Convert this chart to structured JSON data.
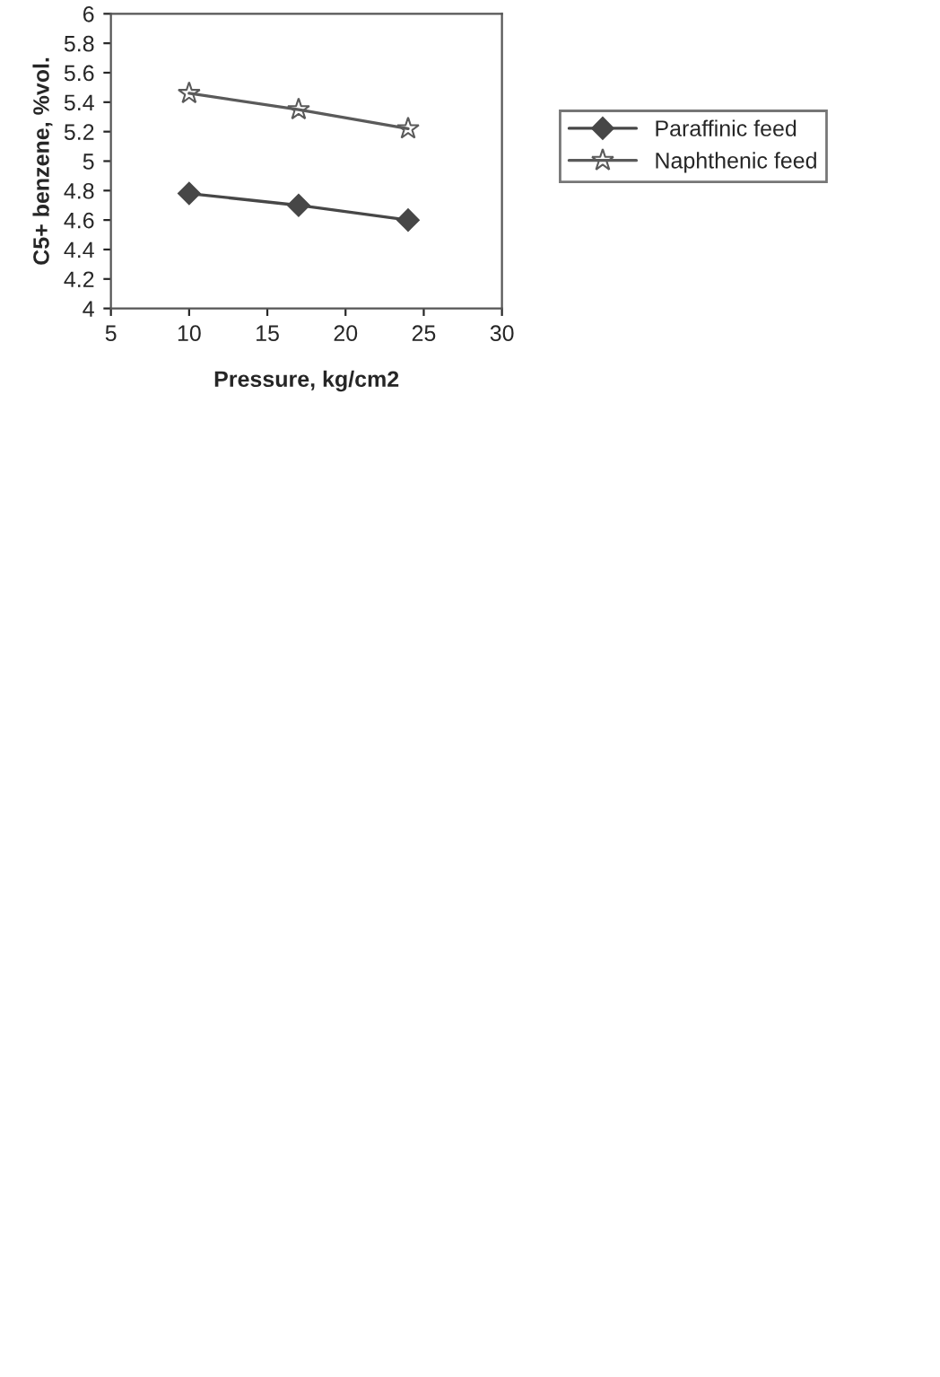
{
  "chart_data": {
    "type": "line",
    "xlabel": "Pressure, kg/cm2",
    "ylabel": "C5+ benzene, %vol.",
    "x": [
      10,
      17,
      24
    ],
    "series": [
      {
        "name": "Paraffinic feed",
        "color": "#474747",
        "marker": "diamond",
        "values": [
          4.78,
          4.7,
          4.6
        ]
      },
      {
        "name": "Naphthenic feed",
        "color": "#5a5a5a",
        "marker": "star",
        "values": [
          5.46,
          5.35,
          5.22
        ]
      }
    ],
    "xlim": [
      5,
      30
    ],
    "xticks": [
      5,
      10,
      15,
      20,
      25,
      30
    ],
    "ylim": [
      4,
      6
    ],
    "yticks": [
      4,
      4.2,
      4.4,
      4.6,
      4.8,
      5,
      5.2,
      5.4,
      5.6,
      5.8,
      6
    ],
    "grid": false,
    "legend": "right",
    "line_style": "solid"
  }
}
